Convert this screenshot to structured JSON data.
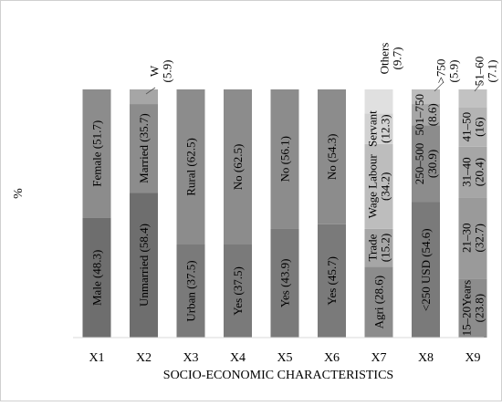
{
  "chart_data": {
    "type": "bar",
    "stacked": true,
    "percent": true,
    "xlabel": "SOCIO-ECONOMIC CHARACTERISTICS",
    "ylabel": "%",
    "ylim": [
      0,
      100
    ],
    "grid": false,
    "categories": [
      "X1",
      "X2",
      "X3",
      "X4",
      "X5",
      "X6",
      "X7",
      "X8",
      "X9"
    ],
    "stacks": [
      {
        "category": "X1",
        "segments": [
          {
            "label": "Male (48.3)",
            "value": 48.3,
            "color": "#6e6e6e"
          },
          {
            "label": "Female (51.7)",
            "value": 51.7,
            "color": "#8c8c8c"
          }
        ]
      },
      {
        "category": "X2",
        "segments": [
          {
            "label": "Unmarried (58.4)",
            "value": 58.4,
            "color": "#6e6e6e"
          },
          {
            "label": "Married (35.7)",
            "value": 35.7,
            "color": "#8c8c8c"
          },
          {
            "label": "W\n(5.9)",
            "value": 5.9,
            "color": "#a6a6a6",
            "callout": true
          }
        ]
      },
      {
        "category": "X3",
        "segments": [
          {
            "label": "Urban (37.5)",
            "value": 37.5,
            "color": "#7a7a7a"
          },
          {
            "label": "Rural (62.5)",
            "value": 62.5,
            "color": "#8c8c8c"
          }
        ]
      },
      {
        "category": "X4",
        "segments": [
          {
            "label": "Yes (37.5)",
            "value": 37.5,
            "color": "#7a7a7a"
          },
          {
            "label": "No (62.5)",
            "value": 62.5,
            "color": "#8c8c8c"
          }
        ]
      },
      {
        "category": "X5",
        "segments": [
          {
            "label": "Yes (43.9)",
            "value": 43.9,
            "color": "#7a7a7a"
          },
          {
            "label": "No (56.1)",
            "value": 56.1,
            "color": "#8c8c8c"
          }
        ]
      },
      {
        "category": "X6",
        "segments": [
          {
            "label": "Yes (45.7)",
            "value": 45.7,
            "color": "#7a7a7a"
          },
          {
            "label": "No (54.3)",
            "value": 54.3,
            "color": "#8c8c8c"
          }
        ]
      },
      {
        "category": "X7",
        "segments": [
          {
            "label": "Agri (28.6)",
            "value": 28.6,
            "color": "#8c8c8c"
          },
          {
            "label": "Trade\n(15.2)",
            "value": 15.2,
            "color": "#a6a6a6"
          },
          {
            "label": "Wage Labour\n(34.2)",
            "value": 34.2,
            "color": "#bdbdbd"
          },
          {
            "label": "Servant\n(12.3)",
            "value": 12.3,
            "color": "#d2d2d2"
          },
          {
            "label": "Others\n(9.7)",
            "value": 9.7,
            "color": "#e0e0e0"
          }
        ]
      },
      {
        "category": "X8",
        "segments": [
          {
            "label": "<250 USD (54.6)",
            "value": 54.6,
            "color": "#7a7a7a"
          },
          {
            "label": "250–500\n(30.9)",
            "value": 30.9,
            "color": "#8c8c8c"
          },
          {
            "label": "501–750\n(8.6)",
            "value": 8.6,
            "color": "#a6a6a6"
          },
          {
            "label": ">750\n(5.9)",
            "value": 5.9,
            "color": "#bdbdbd",
            "callout": true
          }
        ]
      },
      {
        "category": "X9",
        "segments": [
          {
            "label": "15–20Years\n(23.8)",
            "value": 23.8,
            "color": "#8c8c8c"
          },
          {
            "label": "21–30\n(32.7)",
            "value": 32.7,
            "color": "#9a9a9a"
          },
          {
            "label": "31–40\n(20.4)",
            "value": 20.4,
            "color": "#a6a6a6"
          },
          {
            "label": "41–50\n(16)",
            "value": 16,
            "color": "#b4b4b4"
          },
          {
            "label": "51–60\n(7.1)",
            "value": 7.1,
            "color": "#c2c2c2",
            "callout": true
          }
        ]
      }
    ]
  }
}
